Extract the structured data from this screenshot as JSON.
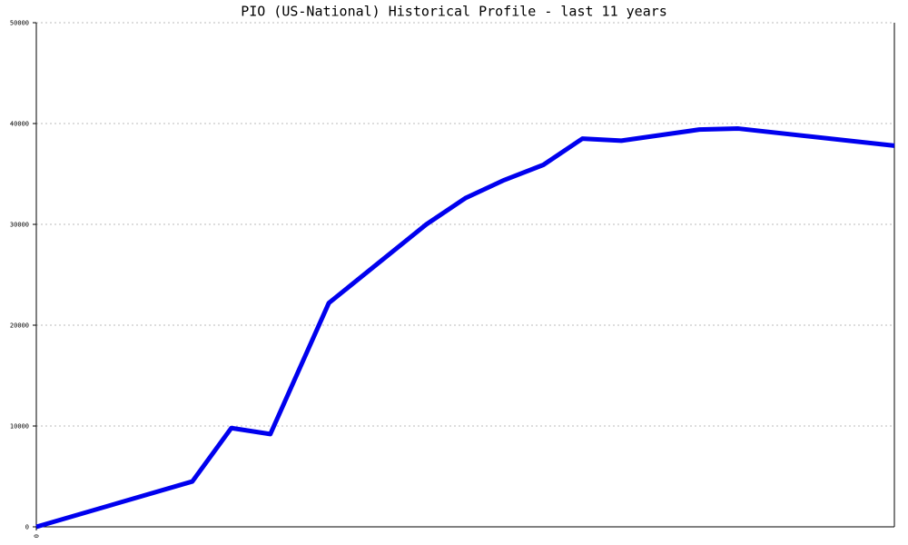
{
  "chart_data": {
    "type": "line",
    "title": "PIO (US-National) Historical Profile - last 11 years",
    "x": [
      0,
      4,
      5,
      6,
      7.5,
      10,
      11,
      12,
      13,
      14,
      15,
      17,
      18,
      22
    ],
    "series": [
      {
        "color": "#0000ee",
        "values": [
          0,
          4500,
          9800,
          9200,
          22200,
          30000,
          32600,
          34400,
          35900,
          38500,
          38300,
          39400,
          39500,
          37800
        ]
      }
    ],
    "xlim": [
      0,
      22
    ],
    "xticks": [
      0
    ],
    "ylim": [
      0,
      50000
    ],
    "yticks": [
      0,
      10000,
      20000,
      30000,
      40000,
      50000
    ],
    "grid": true
  }
}
